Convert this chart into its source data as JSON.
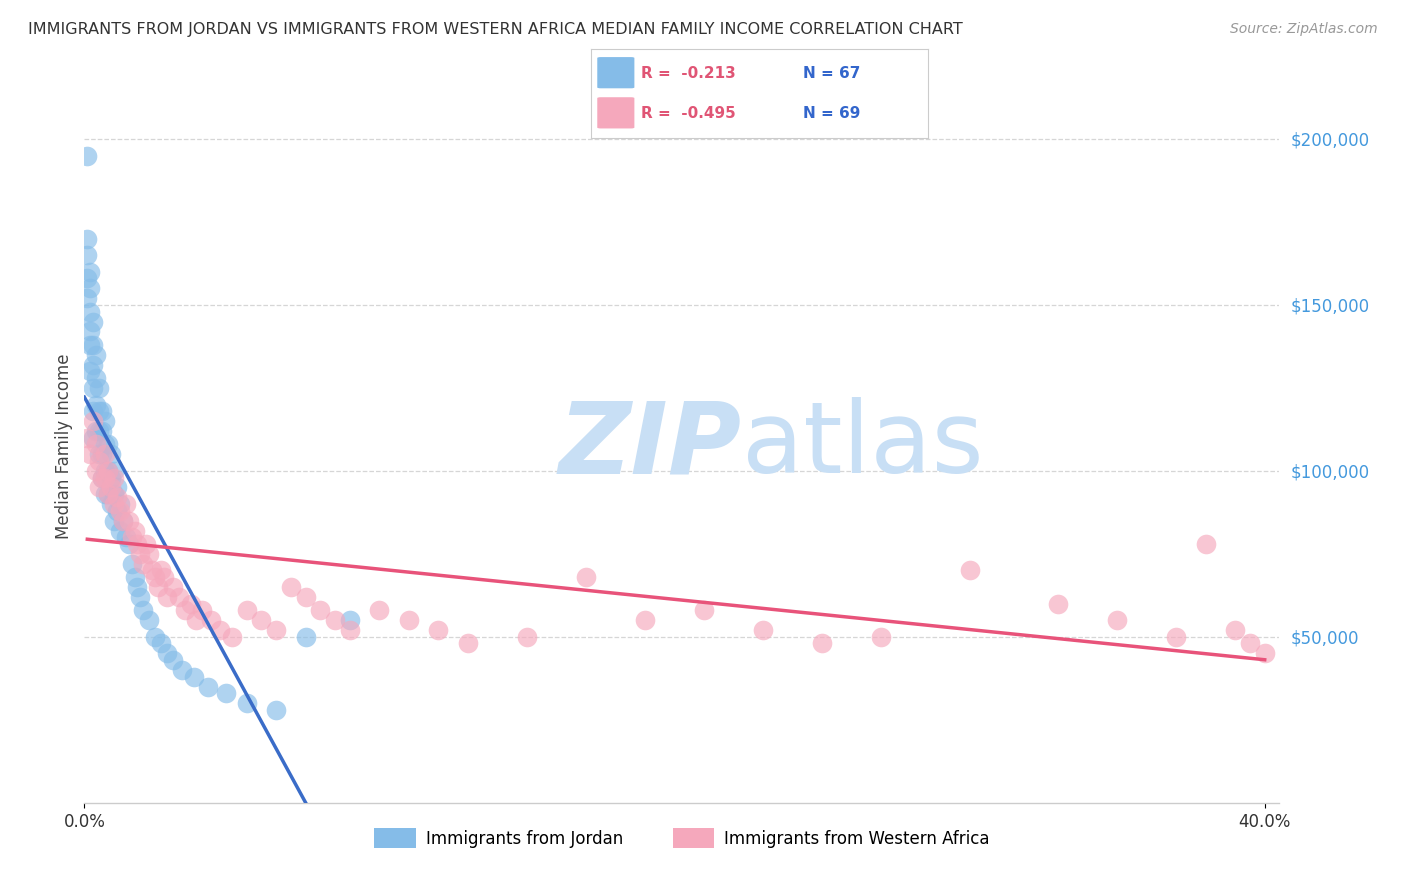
{
  "title": "IMMIGRANTS FROM JORDAN VS IMMIGRANTS FROM WESTERN AFRICA MEDIAN FAMILY INCOME CORRELATION CHART",
  "source": "Source: ZipAtlas.com",
  "ylabel": "Median Family Income",
  "right_ytick_labels": [
    "$200,000",
    "$150,000",
    "$100,000",
    "$50,000"
  ],
  "right_ytick_values": [
    200000,
    150000,
    100000,
    50000
  ],
  "legend_label_jordan": "Immigrants from Jordan",
  "legend_label_w_africa": "Immigrants from Western Africa",
  "legend_r_jordan": "R =  -0.213",
  "legend_n_jordan": "N = 67",
  "legend_r_w_africa": "R =  -0.495",
  "legend_n_w_africa": "N = 69",
  "jordan_color": "#85bce8",
  "w_africa_color": "#f5a8bc",
  "jordan_line_color": "#3a6cc8",
  "w_africa_line_color": "#e8537a",
  "dashed_line_color": "#a8c8e8",
  "background_color": "#ffffff",
  "title_color": "#333333",
  "right_label_color": "#4499dd",
  "watermark_zip": "ZIP",
  "watermark_atlas": "atlas",
  "watermark_color": "#c8dff5",
  "ylim_min": 0,
  "ylim_max": 215000,
  "xlim_min": 0.0,
  "xlim_max": 0.405,
  "jordan_x": [
    0.001,
    0.001,
    0.001,
    0.001,
    0.001,
    0.002,
    0.002,
    0.002,
    0.002,
    0.002,
    0.002,
    0.003,
    0.003,
    0.003,
    0.003,
    0.003,
    0.003,
    0.004,
    0.004,
    0.004,
    0.004,
    0.005,
    0.005,
    0.005,
    0.005,
    0.006,
    0.006,
    0.006,
    0.006,
    0.007,
    0.007,
    0.007,
    0.007,
    0.008,
    0.008,
    0.008,
    0.009,
    0.009,
    0.009,
    0.01,
    0.01,
    0.01,
    0.011,
    0.011,
    0.012,
    0.012,
    0.013,
    0.014,
    0.015,
    0.016,
    0.017,
    0.018,
    0.019,
    0.02,
    0.022,
    0.024,
    0.026,
    0.028,
    0.03,
    0.033,
    0.037,
    0.042,
    0.048,
    0.055,
    0.065,
    0.075,
    0.09
  ],
  "jordan_y": [
    195000,
    170000,
    165000,
    158000,
    152000,
    160000,
    155000,
    148000,
    142000,
    138000,
    130000,
    145000,
    138000,
    132000,
    125000,
    118000,
    110000,
    135000,
    128000,
    120000,
    112000,
    125000,
    118000,
    112000,
    105000,
    118000,
    112000,
    105000,
    98000,
    115000,
    108000,
    100000,
    93000,
    108000,
    100000,
    93000,
    105000,
    98000,
    90000,
    100000,
    93000,
    85000,
    95000,
    88000,
    90000,
    82000,
    85000,
    80000,
    78000,
    72000,
    68000,
    65000,
    62000,
    58000,
    55000,
    50000,
    48000,
    45000,
    43000,
    40000,
    38000,
    35000,
    33000,
    30000,
    28000,
    50000,
    55000
  ],
  "w_africa_x": [
    0.001,
    0.002,
    0.003,
    0.004,
    0.004,
    0.005,
    0.005,
    0.006,
    0.007,
    0.007,
    0.008,
    0.008,
    0.009,
    0.01,
    0.01,
    0.011,
    0.012,
    0.013,
    0.014,
    0.015,
    0.016,
    0.017,
    0.018,
    0.019,
    0.02,
    0.021,
    0.022,
    0.023,
    0.024,
    0.025,
    0.026,
    0.027,
    0.028,
    0.03,
    0.032,
    0.034,
    0.036,
    0.038,
    0.04,
    0.043,
    0.046,
    0.05,
    0.055,
    0.06,
    0.065,
    0.07,
    0.075,
    0.08,
    0.085,
    0.09,
    0.1,
    0.11,
    0.12,
    0.13,
    0.15,
    0.17,
    0.19,
    0.21,
    0.23,
    0.25,
    0.27,
    0.3,
    0.33,
    0.35,
    0.37,
    0.38,
    0.39,
    0.395,
    0.4
  ],
  "w_africa_y": [
    110000,
    105000,
    115000,
    108000,
    100000,
    103000,
    95000,
    98000,
    105000,
    98000,
    100000,
    93000,
    95000,
    90000,
    98000,
    92000,
    88000,
    85000,
    90000,
    85000,
    80000,
    82000,
    78000,
    75000,
    72000,
    78000,
    75000,
    70000,
    68000,
    65000,
    70000,
    68000,
    62000,
    65000,
    62000,
    58000,
    60000,
    55000,
    58000,
    55000,
    52000,
    50000,
    58000,
    55000,
    52000,
    65000,
    62000,
    58000,
    55000,
    52000,
    58000,
    55000,
    52000,
    48000,
    50000,
    68000,
    55000,
    58000,
    52000,
    48000,
    50000,
    70000,
    60000,
    55000,
    50000,
    78000,
    52000,
    48000,
    45000
  ]
}
